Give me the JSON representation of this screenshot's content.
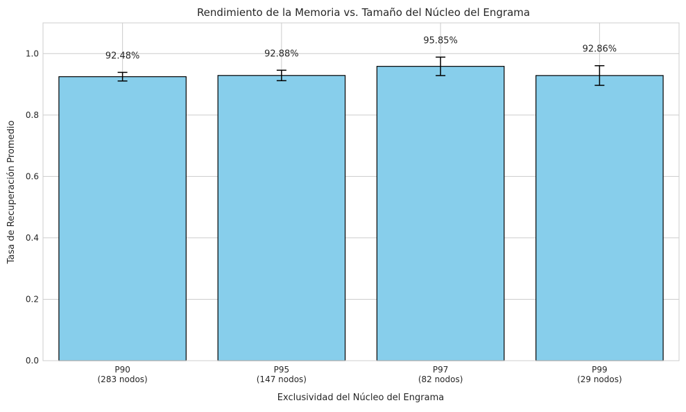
{
  "chart_data": {
    "type": "bar",
    "title": "Rendimiento de la Memoria vs. Tamaño del Núcleo del Engrama",
    "xlabel": "Exclusividad del Núcleo del Engrama",
    "ylabel": "Tasa de Recuperación Promedio",
    "categories": [
      [
        "P90",
        "(283 nodos)"
      ],
      [
        "P95",
        "(147 nodos)"
      ],
      [
        "P97",
        "(82 nodos)"
      ],
      [
        "P99",
        "(29 nodos)"
      ]
    ],
    "values": [
      0.9248,
      0.9288,
      0.9585,
      0.9286
    ],
    "errors": [
      0.014,
      0.017,
      0.03,
      0.032
    ],
    "value_labels": [
      "92.48%",
      "92.88%",
      "95.85%",
      "92.86%"
    ],
    "ylim": [
      0,
      1.1
    ],
    "yticks": [
      0.0,
      0.2,
      0.4,
      0.6,
      0.8,
      1.0
    ],
    "ytick_labels": [
      "0.0",
      "0.2",
      "0.4",
      "0.6",
      "0.8",
      "1.0"
    ],
    "grid": true,
    "colors": {
      "bar_fill": "#87ceeb",
      "bar_edge": "#000000",
      "grid": "#cccccc",
      "axes_edge": "#cccccc",
      "error_bar": "#000000"
    }
  }
}
